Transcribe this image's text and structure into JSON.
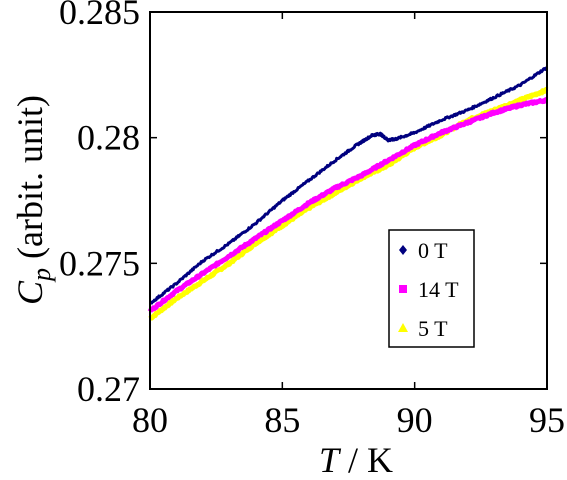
{
  "chart_data": {
    "type": "line",
    "xlabel": "T / K",
    "xlabel_italic": "T",
    "xlabel_rest": " / K",
    "ylabel": "Cp (arbit. unit)",
    "ylabel_symbol": "C",
    "ylabel_subscript": "p",
    "ylabel_rest": " (arbit. unit)",
    "xlim": [
      80,
      95
    ],
    "ylim": [
      0.27,
      0.285
    ],
    "x_ticks": [
      80,
      85,
      90,
      95
    ],
    "x_tick_labels": [
      "80",
      "85",
      "90",
      "95"
    ],
    "y_ticks": [
      0.27,
      0.275,
      0.28,
      0.285
    ],
    "y_tick_labels": [
      "0.27",
      "0.275",
      "0.28",
      "0.285"
    ],
    "grid": false,
    "legend_position": "center-right",
    "series": [
      {
        "name": "0 T",
        "color": "#00007f",
        "marker": "diamond",
        "x": [
          80,
          81,
          82,
          83,
          84,
          85,
          86,
          87,
          87.8,
          88.4,
          88.7,
          89.0,
          89.3,
          90,
          91,
          92,
          93,
          94,
          95
        ],
        "y": [
          0.2734,
          0.2742,
          0.2751,
          0.2758,
          0.2766,
          0.2775,
          0.2783,
          0.2791,
          0.2797,
          0.2801,
          0.28015,
          0.2799,
          0.27995,
          0.2802,
          0.2807,
          0.2811,
          0.2816,
          0.2821,
          0.2828
        ]
      },
      {
        "name": "14 T",
        "color": "#ff00ff",
        "marker": "square",
        "x": [
          80,
          81,
          82,
          83,
          84,
          85,
          86,
          87,
          88,
          89,
          90,
          91,
          92,
          93,
          94,
          95
        ],
        "y": [
          0.2731,
          0.2739,
          0.2746,
          0.2753,
          0.276,
          0.2767,
          0.2774,
          0.278,
          0.2785,
          0.2791,
          0.2797,
          0.2802,
          0.2806,
          0.281,
          0.2813,
          0.2815
        ]
      },
      {
        "name": "5 T",
        "color": "#ffff00",
        "marker": "triangle",
        "x": [
          80,
          81,
          82,
          83,
          84,
          85,
          86,
          87,
          88,
          89,
          90,
          91,
          92,
          93,
          94,
          95
        ],
        "y": [
          0.2728,
          0.2736,
          0.2743,
          0.275,
          0.2758,
          0.2765,
          0.2772,
          0.2778,
          0.2784,
          0.2789,
          0.2796,
          0.2801,
          0.2807,
          0.2811,
          0.2815,
          0.2819
        ]
      }
    ]
  }
}
